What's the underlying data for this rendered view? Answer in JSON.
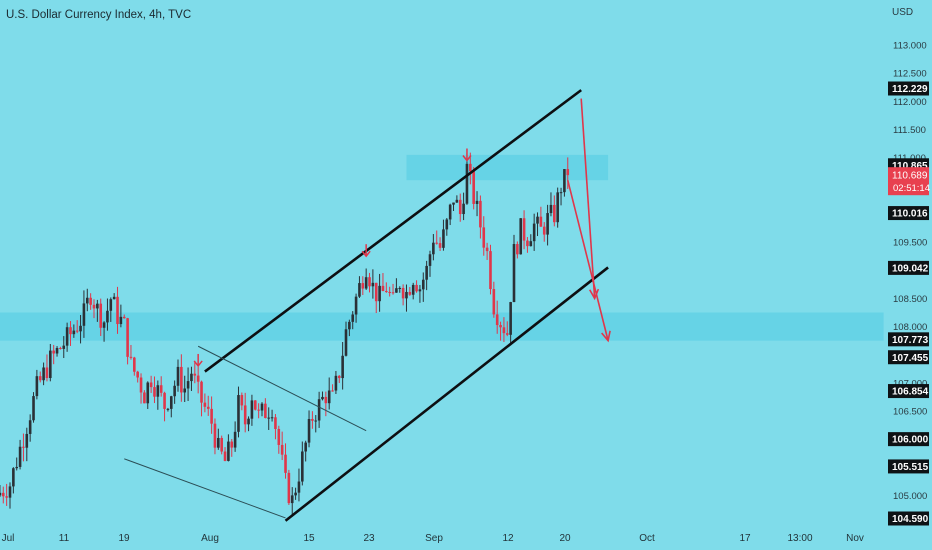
{
  "header": {
    "title": "U.S. Dollar Currency Index, 4h, TVC",
    "currency": "USD"
  },
  "colors": {
    "background": "#7fdcea",
    "zone": "#5dd0e4",
    "up": "#2a3036",
    "down": "#e0364a",
    "price_tag": "#e8404f",
    "arrow": "#e0364a"
  },
  "chart_data": {
    "type": "candlestick",
    "title": "U.S. Dollar Currency Index, 4h, TVC",
    "ylabel": "USD",
    "ylim": [
      104.3,
      113.6
    ],
    "x_ticks": [
      "Jul",
      "11",
      "19",
      "Aug",
      "15",
      "23",
      "Sep",
      "12",
      "20",
      "Oct",
      "17",
      "13:00",
      "Nov"
    ],
    "y_ticks": [
      105.0,
      105.5,
      106.0,
      106.5,
      107.0,
      107.5,
      108.0,
      108.5,
      109.0,
      109.5,
      110.0,
      110.5,
      111.0,
      111.5,
      112.0,
      112.5,
      113.0
    ],
    "highlighted_levels": [
      {
        "value": "112.229",
        "style": "dark"
      },
      {
        "value": "110.865",
        "style": "dark"
      },
      {
        "value": "110.016",
        "style": "dark"
      },
      {
        "value": "109.042",
        "style": "dark"
      },
      {
        "value": "107.773",
        "style": "dark"
      },
      {
        "value": "107.455",
        "style": "dark"
      },
      {
        "value": "106.854",
        "style": "dark"
      },
      {
        "value": "106.000",
        "style": "dark"
      },
      {
        "value": "105.515",
        "style": "dark"
      },
      {
        "value": "104.590",
        "style": "dark"
      }
    ],
    "current_price": {
      "value": "110.689",
      "countdown": "02:51:14"
    },
    "price_path": [
      [
        "Jun 29",
        105.0
      ],
      [
        "Jul 1",
        105.2
      ],
      [
        "Jul 5",
        106.9
      ],
      [
        "Jul 7",
        107.4
      ],
      [
        "Jul 9",
        107.7
      ],
      [
        "Jul 12",
        108.2
      ],
      [
        "Jul 13",
        108.6
      ],
      [
        "Jul 14",
        108.3
      ],
      [
        "Jul 15",
        108.1
      ],
      [
        "Jul 16",
        108.5
      ],
      [
        "Jul 17",
        108.2
      ],
      [
        "Jul 18",
        108.0
      ],
      [
        "Jul 19",
        107.3
      ],
      [
        "Jul 20",
        107.1
      ],
      [
        "Jul 21",
        106.8
      ],
      [
        "Jul 22",
        107.1
      ],
      [
        "Jul 24",
        106.6
      ],
      [
        "Jul 26",
        107.1
      ],
      [
        "Jul 27",
        106.9
      ],
      [
        "Jul 28",
        107.2
      ],
      [
        "Jul 29",
        106.8
      ],
      [
        "Jul 31",
        106.3
      ],
      [
        "Aug 1",
        105.8
      ],
      [
        "Aug 2",
        105.6
      ],
      [
        "Aug 3",
        105.9
      ],
      [
        "Aug 4",
        106.6
      ],
      [
        "Aug 5",
        106.3
      ],
      [
        "Aug 6",
        106.8
      ],
      [
        "Aug 7",
        106.4
      ],
      [
        "Aug 8",
        106.5
      ],
      [
        "Aug 9",
        106.6
      ],
      [
        "Aug 10",
        105.9
      ],
      [
        "Aug 11",
        105.2
      ],
      [
        "Aug 12",
        104.9
      ],
      [
        "Aug 13",
        105.4
      ],
      [
        "Aug 14",
        105.9
      ],
      [
        "Aug 15",
        106.4
      ],
      [
        "Aug 16",
        106.6
      ],
      [
        "Aug 17",
        106.8
      ],
      [
        "Aug 18",
        106.7
      ],
      [
        "Aug 19",
        107.2
      ],
      [
        "Aug 20",
        107.9
      ],
      [
        "Aug 21",
        108.3
      ],
      [
        "Aug 22",
        108.7
      ],
      [
        "Aug 23",
        109.1
      ],
      [
        "Aug 24",
        108.7
      ],
      [
        "Aug 25",
        108.5
      ],
      [
        "Aug 26",
        108.7
      ],
      [
        "Aug 27",
        108.4
      ],
      [
        "Aug 28",
        108.8
      ],
      [
        "Aug 29",
        108.6
      ],
      [
        "Aug 30",
        108.9
      ],
      [
        "Aug 31",
        108.7
      ],
      [
        "Sep 1",
        109.0
      ],
      [
        "Sep 2",
        109.6
      ],
      [
        "Sep 3",
        109.4
      ],
      [
        "Sep 4",
        109.8
      ],
      [
        "Sep 5",
        110.3
      ],
      [
        "Sep 6",
        110.0
      ],
      [
        "Sep 7",
        110.8
      ],
      [
        "Sep 8",
        110.3
      ],
      [
        "Sep 9",
        109.8
      ],
      [
        "Sep 10",
        109.3
      ],
      [
        "Sep 11",
        108.4
      ],
      [
        "Sep 12",
        108.1
      ],
      [
        "Sep 13",
        107.9
      ],
      [
        "Sep 14",
        109.3
      ],
      [
        "Sep 15",
        109.7
      ],
      [
        "Sep 16",
        109.6
      ],
      [
        "Sep 17",
        109.8
      ],
      [
        "Sep 18",
        109.7
      ],
      [
        "Sep 19",
        109.9
      ],
      [
        "Sep 20",
        110.0
      ],
      [
        "Sep 21",
        110.5
      ],
      [
        "Sep 22",
        110.69
      ]
    ],
    "zones": [
      {
        "from": "Aug 29",
        "to": "Sep 28",
        "low": 110.6,
        "high": 111.05
      },
      {
        "from": "Jun 29",
        "to": "Nov 8",
        "low": 107.75,
        "high": 108.25
      }
    ],
    "trendlines": [
      {
        "role": "channel-upper",
        "from": [
          "Jul 30",
          107.2
        ],
        "to": [
          "Sep 24",
          112.2
        ]
      },
      {
        "role": "channel-lower",
        "from": [
          "Aug 11",
          104.55
        ],
        "to": [
          "Sep 28",
          109.05
        ]
      },
      {
        "role": "descending-upper",
        "from": [
          "Jul 29",
          107.65
        ],
        "to": [
          "Aug 23",
          106.15
        ]
      },
      {
        "role": "descending-lower",
        "from": [
          "Jul 18",
          105.65
        ],
        "to": [
          "Aug 11",
          104.6
        ]
      }
    ],
    "forecast_arrows": [
      {
        "from": [
          "Sep 24",
          112.05
        ],
        "to": [
          "Sep 26",
          108.5
        ]
      },
      {
        "from": [
          "Sep 22",
          110.6
        ],
        "to": [
          "Sep 28",
          107.75
        ]
      }
    ],
    "markers": [
      {
        "type": "arrow-down",
        "at": [
          "Jul 29",
          107.3
        ]
      },
      {
        "type": "arrow-down",
        "at": [
          "Aug 23",
          109.25
        ]
      },
      {
        "type": "arrow-down",
        "at": [
          "Sep 7",
          110.95
        ]
      }
    ]
  }
}
